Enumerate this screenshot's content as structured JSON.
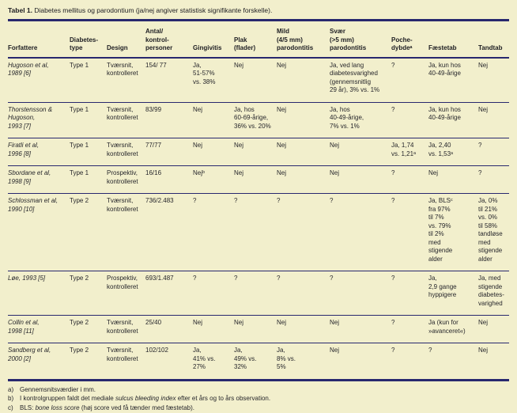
{
  "title": {
    "label": "Tabel 1.",
    "text": " Diabetes mellitus og parodontium (ja/nej angiver statistisk signifikante forskelle)."
  },
  "table": {
    "columns": [
      "Forfattere",
      "Diabetes-\ntype",
      "Design",
      "Antal/\nkontrol-\npersoner",
      "Gingivitis",
      "Plak\n(flader)",
      "Mild\n(4/5 mm)\nparodontitis",
      "Svær\n(>5 mm)\nparodontitis",
      "Poche-\ndybdeᵃ",
      "Fæstetab",
      "Tandtab"
    ],
    "rows": [
      [
        "Hugoson et al,\n1989 [6]",
        "Type 1",
        "Tværsnit,\nkontrolleret",
        "154/ 77",
        "Ja,\n51-57%\nvs. 38%",
        "Nej",
        "Nej",
        "Ja, ved lang\ndiabetesvarighed\n(gennemsnitlig\n29 år), 3% vs. 1%",
        "?",
        "Ja, kun hos\n40-49-årige",
        "Nej"
      ],
      [
        "Thorstensson &\nHugoson,\n1993 [7]",
        "Type 1",
        "Tværsnit,\nkontrolleret",
        "83/99",
        "Nej",
        "Ja, hos\n60-69-årige,\n36% vs. 20%",
        "Nej",
        "Ja, hos\n40-49-årige,\n7% vs. 1%",
        "?",
        "Ja, kun hos\n40-49-årige",
        "Nej"
      ],
      [
        "Firatli et al,\n1996 [8]",
        "Type 1",
        "Tværsnit,\nkontrolleret",
        "77/77",
        "Nej",
        "Nej",
        "Nej",
        "Nej",
        "Ja, 1,74\nvs. 1,21ᵃ",
        "Ja, 2,40\nvs. 1,53ᵃ",
        "?"
      ],
      [
        "Sbordane et al,\n1998 [9]",
        "Type 1",
        "Prospektiv,\nkontrolleret",
        "16/16",
        "Nejᵇ",
        "Nej",
        "Nej",
        "Nej",
        "?",
        "Nej",
        "?"
      ],
      [
        "Schlossman et al,\n1990 [10]",
        "Type 2",
        "Tværsnit,\nkontrolleret",
        "736/2.483",
        "?",
        "?",
        "?",
        "?",
        "?",
        "Ja, BLSᶜ\nfra 97%\ntil 7%\nvs. 79%\ntil 2%\nmed\nstigende\nalder",
        "Ja, 0%\ntil 21%\nvs. 0%\ntil 58%\ntandløse\nmed\nstigende\nalder"
      ],
      [
        "Løe, 1993 [5]",
        "Type 2",
        "Prospektiv,\nkontrolleret",
        "693/1.487",
        "?",
        "?",
        "?",
        "?",
        "?",
        "Ja,\n2,9 gange\nhyppigere",
        "Ja, med\nstigende\ndiabetes-\nvarighed"
      ],
      [
        "Collin et al,\n1998 [11]",
        "Type 2",
        "Tværsnit,\nkontrolleret",
        "25/40",
        "Nej",
        "Nej",
        "Nej",
        "Nej",
        "?",
        "Ja (kun for\n»avanceret«)",
        "Nej"
      ],
      [
        "Sandberg et al,\n2000 [2]",
        "Type 2",
        "Tværsnit,\nkontrolleret",
        "102/102",
        "Ja,\n41% vs.\n27%",
        "Ja,\n49% vs.\n32%",
        "Ja,\n8% vs.\n5%",
        "Nej",
        "?",
        "?",
        "Nej"
      ]
    ]
  },
  "footnotes": [
    {
      "marker": "a)",
      "segments": [
        {
          "text": "Gennemsnitsværdier i mm.",
          "italic": false
        }
      ]
    },
    {
      "marker": "b)",
      "segments": [
        {
          "text": "I kontrolgruppen faldt det mediale ",
          "italic": false
        },
        {
          "text": "sulcus bleeding index",
          "italic": true
        },
        {
          "text": " efter et års og to års observation.",
          "italic": false
        }
      ]
    },
    {
      "marker": "c)",
      "segments": [
        {
          "text": "BLS: ",
          "italic": false
        },
        {
          "text": "bone loss score",
          "italic": true
        },
        {
          "text": " (høj score ved få tænder med fæstetab).",
          "italic": false
        }
      ]
    }
  ],
  "colors": {
    "background": "#f2efcc",
    "rule": "#28286e",
    "text": "#26262b"
  }
}
